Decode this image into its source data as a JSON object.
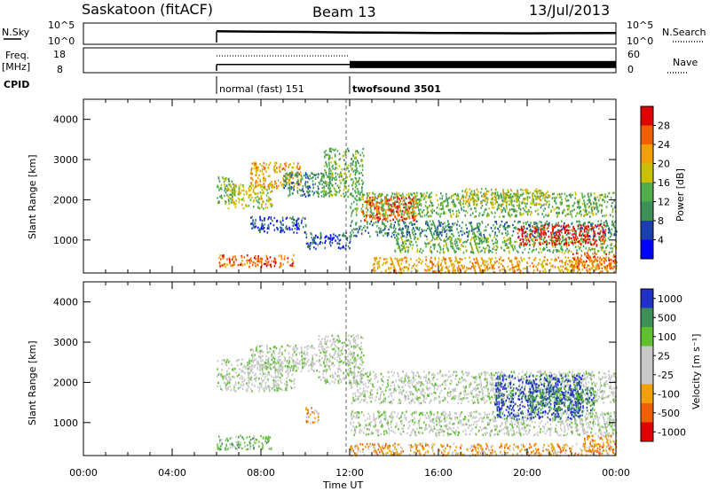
{
  "header": {
    "radar": "Saskatoon (fitACF)",
    "beam": "Beam 13",
    "date": "13/Jul/2013"
  },
  "colors": {
    "power": [
      "#0000ff",
      "#1c3fb0",
      "#3f8f5a",
      "#4fae4a",
      "#c8c000",
      "#f0a000",
      "#f06000",
      "#e00000"
    ],
    "velocity": [
      "#2030c8",
      "#3f8f5a",
      "#60c030",
      "#c8c8c8",
      "#c8c8c8",
      "#f0a000",
      "#f06000",
      "#e00000"
    ],
    "ground_scatter": "#c8c8c8"
  },
  "chart_data": [
    {
      "type": "line",
      "panel": "noise",
      "ylabel_left": "N.Sky",
      "ylabel_right": "N.Search",
      "left_ticks": [
        "10^5",
        "10^0"
      ],
      "right_ticks": [
        "10^5",
        "10^0"
      ],
      "yscale": "log",
      "ylim": [
        1,
        100000
      ],
      "x_hours": [
        6.0,
        8.0,
        10.0,
        12.0,
        14.0,
        16.0,
        18.0,
        20.0,
        22.0,
        24.0
      ],
      "series": [
        {
          "values": [
            1500,
            1200,
            1000,
            700,
            600,
            500,
            450,
            400,
            450,
            500
          ]
        }
      ]
    },
    {
      "type": "line",
      "panel": "frequency",
      "ylabel_left": "Freq.",
      "ylabel_left_unit": "[MHz]",
      "ylabel_right": "Nave",
      "left_ticks": [
        "18",
        "8"
      ],
      "right_ticks": [
        "60",
        "0"
      ],
      "ylim_left": [
        8,
        18
      ],
      "ylim_right": [
        0,
        60
      ],
      "series": [
        {
          "x_hours": [
            6.0,
            12.0,
            12.0,
            24.0
          ],
          "values": [
            11,
            11,
            11,
            11
          ]
        }
      ]
    },
    {
      "type": "table",
      "panel": "cpid",
      "label": "CPID",
      "segments": [
        {
          "start_hour": 6.0,
          "label": "normal (fast) 151"
        },
        {
          "start_hour": 12.0,
          "label": "twofsound 3501"
        }
      ]
    },
    {
      "type": "heatmap",
      "panel": "power",
      "ylabel": "Slant Range [km]",
      "ylim": [
        180,
        4500
      ],
      "y_ticks": [
        1000,
        2000,
        3000,
        4000
      ],
      "xlim": [
        0,
        24
      ],
      "x_ticks": [
        0,
        4,
        8,
        12,
        16,
        20,
        24
      ],
      "colorbar": {
        "label": "Power [dB]",
        "levels": [
          "4",
          "8",
          "12",
          "16",
          "20",
          "24",
          "28"
        ]
      },
      "blobs": [
        {
          "t0": 6.0,
          "t1": 6.8,
          "r0": 1900,
          "r1": 2600,
          "level": 3
        },
        {
          "t0": 6.5,
          "t1": 8.5,
          "r0": 1800,
          "r1": 2400,
          "level": 4
        },
        {
          "t0": 7.5,
          "t1": 9.8,
          "r0": 2300,
          "r1": 2950,
          "level": 5
        },
        {
          "t0": 9.0,
          "t1": 11.2,
          "r0": 2100,
          "r1": 2700,
          "level": 2
        },
        {
          "t0": 10.8,
          "t1": 12.6,
          "r0": 2100,
          "r1": 3300,
          "level": 3
        },
        {
          "t0": 6.0,
          "t1": 9.5,
          "r0": 350,
          "r1": 650,
          "level": 6
        },
        {
          "t0": 7.5,
          "t1": 10.0,
          "r0": 1200,
          "r1": 1600,
          "level": 1
        },
        {
          "t0": 10.0,
          "t1": 12.0,
          "r0": 800,
          "r1": 1200,
          "level": 1
        },
        {
          "t0": 12.0,
          "t1": 24.0,
          "r0": 1600,
          "r1": 2200,
          "level": 3
        },
        {
          "t0": 12.5,
          "t1": 15.0,
          "r0": 1500,
          "r1": 2100,
          "level": 6
        },
        {
          "t0": 12.0,
          "t1": 24.0,
          "r0": 1100,
          "r1": 1500,
          "level": 2
        },
        {
          "t0": 14.0,
          "t1": 24.0,
          "r0": 700,
          "r1": 1100,
          "level": 3
        },
        {
          "t0": 19.5,
          "t1": 23.5,
          "r0": 900,
          "r1": 1400,
          "level": 7
        },
        {
          "t0": 13.0,
          "t1": 24.0,
          "r0": 200,
          "r1": 600,
          "level": 5
        },
        {
          "t0": 22.0,
          "t1": 24.0,
          "r0": 300,
          "r1": 700,
          "level": 6
        },
        {
          "t0": 17.0,
          "t1": 21.0,
          "r0": 1900,
          "r1": 2300,
          "level": 4
        }
      ]
    },
    {
      "type": "heatmap",
      "panel": "velocity",
      "ylabel": "Slant Range [km]",
      "ylim": [
        180,
        4500
      ],
      "y_ticks": [
        1000,
        2000,
        3000,
        4000
      ],
      "xlim": [
        0,
        24
      ],
      "x_ticks": [
        0,
        4,
        8,
        12,
        16,
        20,
        24
      ],
      "xlabel": "Time UT",
      "x_tick_labels": [
        "00:00",
        "04:00",
        "08:00",
        "12:00",
        "16:00",
        "20:00",
        "00:00"
      ],
      "colorbar": {
        "label": "Velocity [m s⁻¹]",
        "levels": [
          "1000",
          "500",
          "100",
          "25",
          "-25",
          "-100",
          "-500",
          "-1000"
        ]
      },
      "blobs": [
        {
          "t0": 6.0,
          "t1": 9.5,
          "r0": 1800,
          "r1": 2600,
          "level": 3
        },
        {
          "t0": 7.5,
          "t1": 10.5,
          "r0": 2300,
          "r1": 2950,
          "level": 3
        },
        {
          "t0": 10.5,
          "t1": 12.6,
          "r0": 2000,
          "r1": 3200,
          "level": 3
        },
        {
          "t0": 12.0,
          "t1": 24.0,
          "r0": 1500,
          "r1": 2300,
          "level": 3
        },
        {
          "t0": 12.0,
          "t1": 24.0,
          "r0": 700,
          "r1": 1300,
          "level": 3
        },
        {
          "t0": 6.0,
          "t1": 8.5,
          "r0": 350,
          "r1": 700,
          "level": 2
        },
        {
          "t0": 10.0,
          "t1": 10.6,
          "r0": 1000,
          "r1": 1400,
          "level": 5
        },
        {
          "t0": 18.5,
          "t1": 22.5,
          "r0": 1100,
          "r1": 2200,
          "level": 0
        },
        {
          "t0": 20.0,
          "t1": 23.0,
          "r0": 1300,
          "r1": 1900,
          "level": 1
        },
        {
          "t0": 12.0,
          "t1": 24.0,
          "r0": 200,
          "r1": 500,
          "level": 5
        },
        {
          "t0": 22.5,
          "t1": 24.0,
          "r0": 300,
          "r1": 700,
          "level": 5
        }
      ]
    }
  ]
}
